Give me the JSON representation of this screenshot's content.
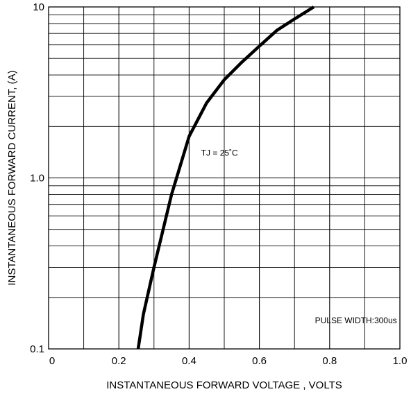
{
  "chart_data": {
    "type": "line",
    "title": "",
    "xlabel": "INSTANTANEOUS FORWARD VOLTAGE , VOLTS",
    "ylabel": "INSTANTANEOUS  FORWARD CURRENT, (A)",
    "xlim": [
      0,
      1.0
    ],
    "ylim": [
      0.1,
      10
    ],
    "y_scale": "log",
    "grid": true,
    "x_ticks": [
      {
        "value": 0,
        "label": "0"
      },
      {
        "value": 0.2,
        "label": "0.2"
      },
      {
        "value": 0.4,
        "label": "0.4"
      },
      {
        "value": 0.6,
        "label": "0.6"
      },
      {
        "value": 0.8,
        "label": "0.8"
      },
      {
        "value": 1.0,
        "label": "1.0"
      }
    ],
    "y_ticks": [
      {
        "value": 0.1,
        "label": "0.1"
      },
      {
        "value": 1.0,
        "label": "1.0"
      },
      {
        "value": 10,
        "label": "10"
      }
    ],
    "series": [
      {
        "x": [
          0.255,
          0.27,
          0.3,
          0.35,
          0.4,
          0.45,
          0.5,
          0.55,
          0.6,
          0.65,
          0.7,
          0.755
        ],
        "y": [
          0.1,
          0.16,
          0.3,
          0.8,
          1.75,
          2.75,
          3.75,
          4.75,
          5.9,
          7.3,
          8.5,
          10
        ]
      }
    ],
    "annotations": [
      {
        "text": "TJ = 25˚C",
        "x": 0.45,
        "y": 1.4
      },
      {
        "text": "PULSE WIDTH:300us",
        "x": 0.77,
        "y": 0.14
      }
    ]
  }
}
